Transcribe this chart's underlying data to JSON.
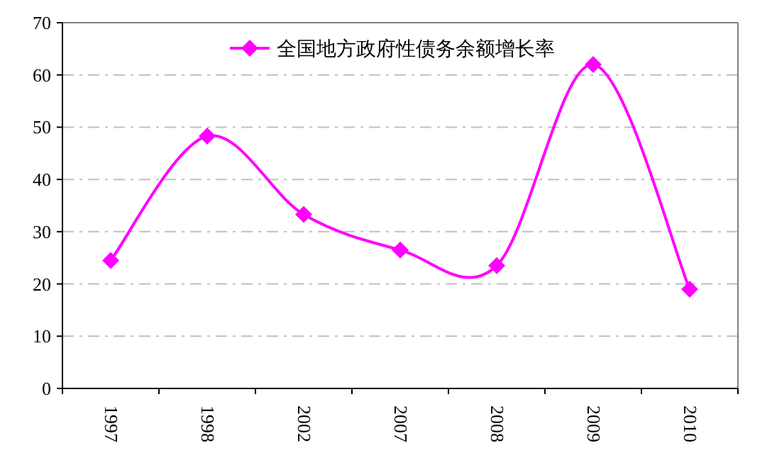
{
  "chart_data": {
    "type": "line",
    "categories": [
      "1997",
      "1998",
      "2002",
      "2007",
      "2008",
      "2009",
      "2010"
    ],
    "series": [
      {
        "name": "全国地方政府性债务余额增长率",
        "color": "#ff00ff",
        "values": [
          24.5,
          48.3,
          33.3,
          26.5,
          23.5,
          62,
          19
        ]
      }
    ],
    "ylim": [
      0,
      70
    ],
    "yticks": [
      0,
      10,
      20,
      30,
      40,
      50,
      60,
      70
    ],
    "grid": "y",
    "legend": "top",
    "marker": "diamond",
    "line_style": "solid"
  }
}
